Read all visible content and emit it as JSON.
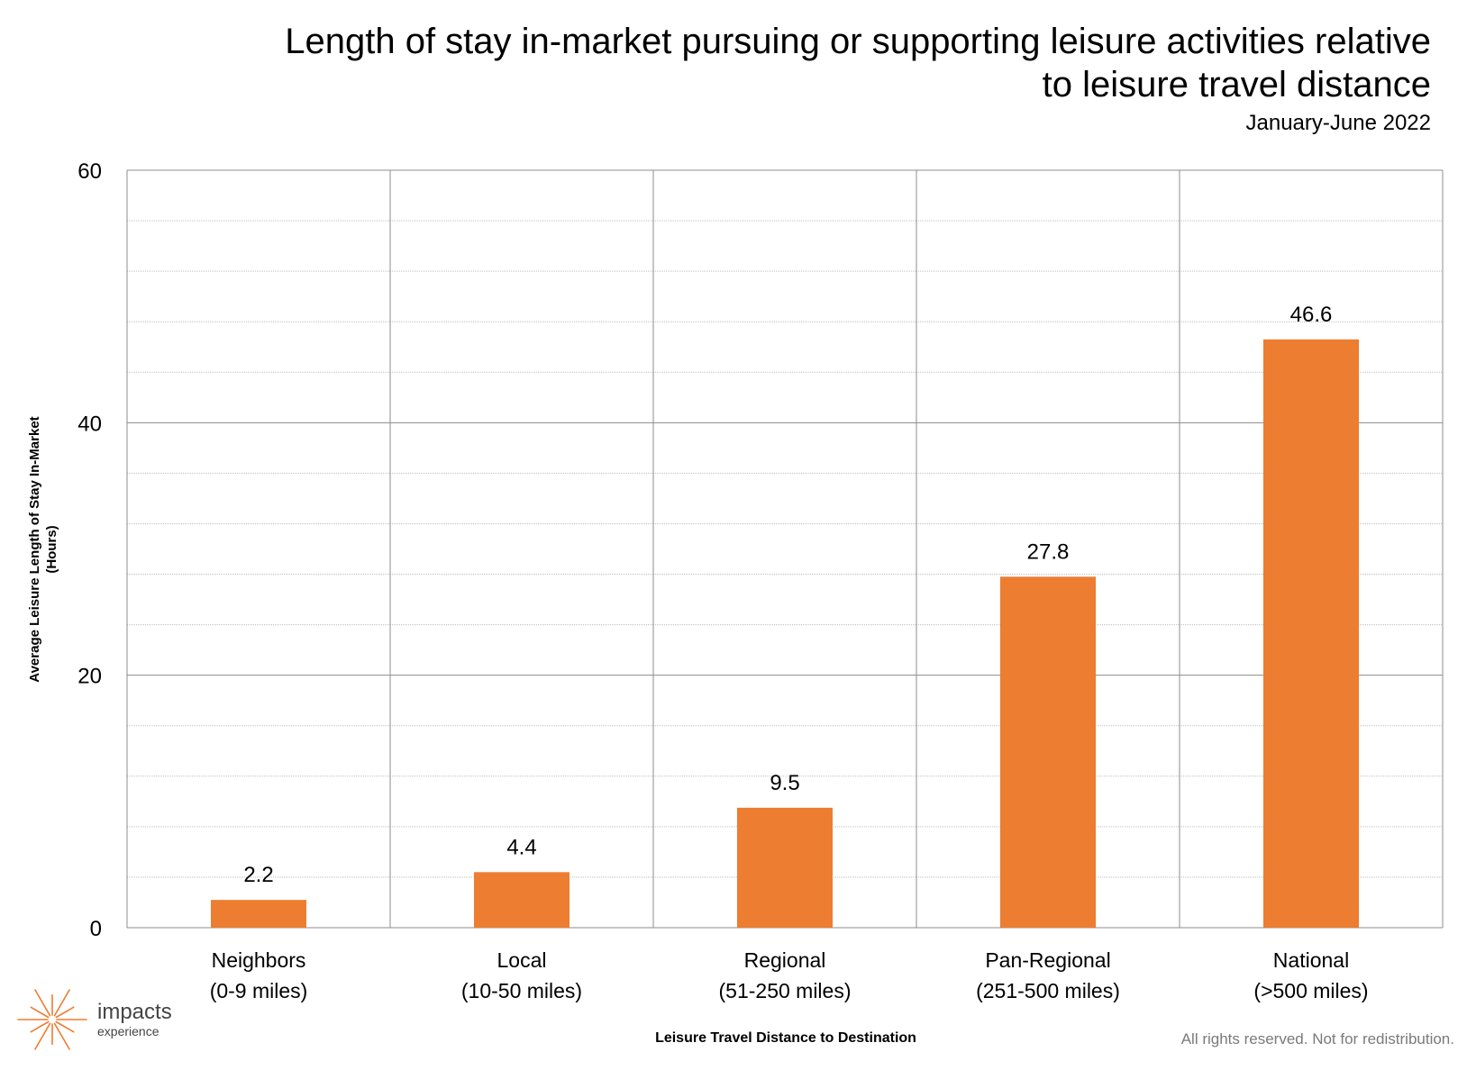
{
  "colors": {
    "bar": "#ED7D31",
    "major_grid": "#8c8c8c",
    "minor_grid": "#bfbfbf",
    "text": "#000000",
    "logo": "#ED7D31",
    "footer": "#7a7a7a"
  },
  "logo": {
    "icon": "starburst-icon",
    "name": "impacts",
    "sub": "experience"
  },
  "footer": {
    "note": "All rights reserved. Not for redistribution."
  },
  "chart_data": {
    "type": "bar",
    "title": "Length of stay in-market pursuing or supporting leisure activities relative to leisure travel distance",
    "subtitle": "January-June 2022",
    "xlabel": "Leisure Travel Distance to Destination",
    "ylabel": [
      "Average Leisure Length of Stay In-Market",
      "(Hours)"
    ],
    "categories": [
      [
        "Neighbors",
        "(0-9 miles)"
      ],
      [
        "Local",
        "(10-50 miles)"
      ],
      [
        "Regional",
        "(51-250 miles)"
      ],
      [
        "Pan-Regional",
        "(251-500 miles)"
      ],
      [
        "National",
        "(>500 miles)"
      ]
    ],
    "values": [
      2.2,
      4.4,
      9.5,
      27.8,
      46.6
    ],
    "data_labels": [
      "2.2",
      "4.4",
      "9.5",
      "27.8",
      "46.6"
    ],
    "ylim": [
      0,
      60
    ],
    "yticks": [
      0,
      20,
      40,
      60
    ],
    "minor_grid_step": 4,
    "grid": true,
    "legend": "none"
  }
}
